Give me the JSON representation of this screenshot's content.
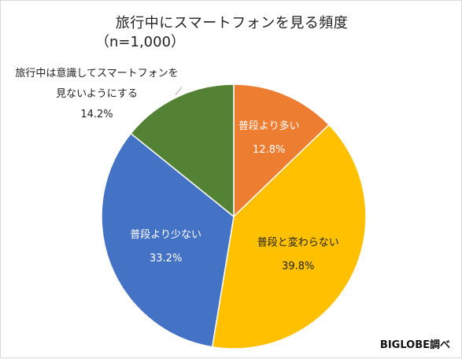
{
  "chart_data": {
    "type": "pie",
    "title": "旅行中にスマートフォンを見る頻度",
    "subtitle": "（n=1,000）",
    "start_angle_deg": 0,
    "direction": "clockwise",
    "slices": [
      {
        "label": "普段より多い",
        "value": 12.8,
        "value_text": "12.8%",
        "color": "#ED7D31",
        "label_color": "#ffffff",
        "label_lines": [
          "普段より多い"
        ]
      },
      {
        "label": "普段と変わらない",
        "value": 39.8,
        "value_text": "39.8%",
        "color": "#FFC000",
        "label_color": "#222222",
        "label_lines": [
          "普段と変わらない"
        ]
      },
      {
        "label": "普段より少ない",
        "value": 33.2,
        "value_text": "33.2%",
        "color": "#4472C4",
        "label_color": "#ffffff",
        "label_lines": [
          "普段より少ない"
        ]
      },
      {
        "label": "旅行中は意識してスマートフォンを見ないようにする",
        "value": 14.2,
        "value_text": "14.2%",
        "color": "#548235",
        "label_color": "#222222",
        "label_lines": [
          "旅行中は意識してスマートフォンを",
          "見ないようにする"
        ]
      }
    ]
  },
  "credit": "BIGLOBE調べ"
}
